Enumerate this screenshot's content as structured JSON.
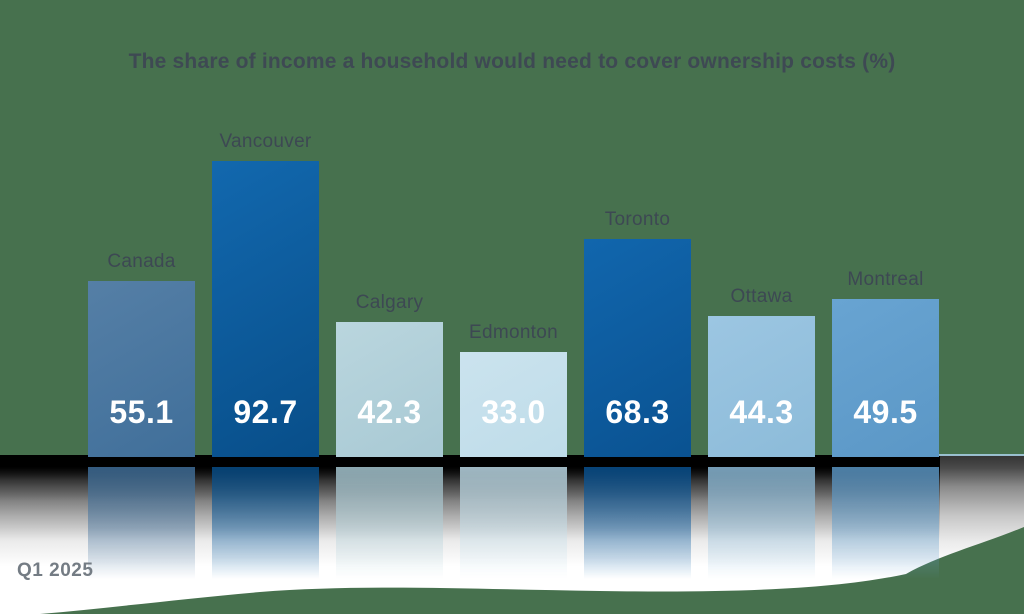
{
  "title": "The share of income a household would need to cover ownership costs (%)",
  "footnote": "Q1 2025",
  "colors": {
    "background": "#47714e",
    "title": "#3e4953",
    "city_label": "#3d4853",
    "bar_value": "#ffffff",
    "period_label": "#747c84",
    "shadow_band": "#000000",
    "floor_highlight": "#ffffff",
    "horizon_line": "#a4cbdf"
  },
  "chart_data": {
    "type": "bar",
    "title": "The share of income a household would need to cover ownership costs (%)",
    "unit": "%",
    "categories": [
      "Canada",
      "Vancouver",
      "Calgary",
      "Edmonton",
      "Toronto",
      "Ottawa",
      "Montreal"
    ],
    "values": [
      55.1,
      92.7,
      42.3,
      33.0,
      68.3,
      44.3,
      49.5
    ],
    "value_labels": [
      "55.1",
      "92.7",
      "42.3",
      "33.0",
      "68.3",
      "44.3",
      "49.5"
    ],
    "bar_colors": [
      {
        "top": "#557fa6",
        "bottom": "#406f9a"
      },
      {
        "top": "#1268ae",
        "bottom": "#084e89"
      },
      {
        "top": "#bad6de",
        "bottom": "#a8c9d4"
      },
      {
        "top": "#cbe3ee",
        "bottom": "#bedce9"
      },
      {
        "top": "#1166ad",
        "bottom": "#0a5291"
      },
      {
        "top": "#9cc6e2",
        "bottom": "#8cbbd9"
      },
      {
        "top": "#68a4d2",
        "bottom": "#5b97c6"
      }
    ],
    "ylim": [
      0,
      100
    ],
    "grid": false,
    "legend": false,
    "value_label_position": "inside-bottom",
    "category_label_position": "above-bar",
    "effects": [
      "reflective-floor",
      "shadow-band"
    ]
  }
}
